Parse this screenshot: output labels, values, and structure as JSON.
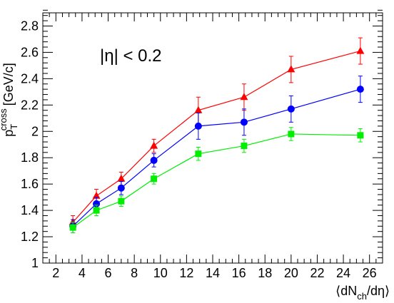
{
  "chart_data": {
    "type": "scatter",
    "title": "",
    "annotation": "|η| < 0.2",
    "ylabel": {
      "main": "p",
      "sub": "T",
      "sup": "cross",
      "unit": "[GeV/c]"
    },
    "xlabel": {
      "pre": "⟨dN",
      "sub": "ch",
      "post": "/dη⟩"
    },
    "xlim": [
      1,
      27
    ],
    "ylim": [
      1,
      2.9
    ],
    "xticks": [
      "2",
      "4",
      "6",
      "8",
      "10",
      "12",
      "14",
      "16",
      "18",
      "20",
      "22",
      "24",
      "26"
    ],
    "yticks": [
      "1.2",
      "1.4",
      "1.6",
      "1.8",
      "2",
      "2.2",
      "2.4",
      "2.6",
      "2.8"
    ],
    "grid": false,
    "legend": "none",
    "x": [
      3.3,
      5.1,
      7.0,
      9.5,
      12.9,
      16.4,
      20.0,
      25.3
    ],
    "series": [
      {
        "color": "#ff0000",
        "marker": "triangle",
        "values": [
          1.31,
          1.51,
          1.64,
          1.89,
          2.16,
          2.26,
          2.47,
          2.61
        ],
        "errors": [
          0.05,
          0.05,
          0.05,
          0.05,
          0.1,
          0.1,
          0.1,
          0.1
        ]
      },
      {
        "color": "#0000ff",
        "marker": "circle",
        "values": [
          1.28,
          1.45,
          1.57,
          1.78,
          2.04,
          2.07,
          2.17,
          2.32
        ],
        "errors": [
          0.05,
          0.05,
          0.05,
          0.05,
          0.1,
          0.1,
          0.1,
          0.1
        ]
      },
      {
        "color": "#00ee00",
        "marker": "square",
        "values": [
          1.27,
          1.4,
          1.47,
          1.64,
          1.83,
          1.89,
          1.98,
          1.97
        ],
        "errors": [
          0.04,
          0.04,
          0.04,
          0.04,
          0.05,
          0.05,
          0.05,
          0.05
        ]
      }
    ]
  }
}
